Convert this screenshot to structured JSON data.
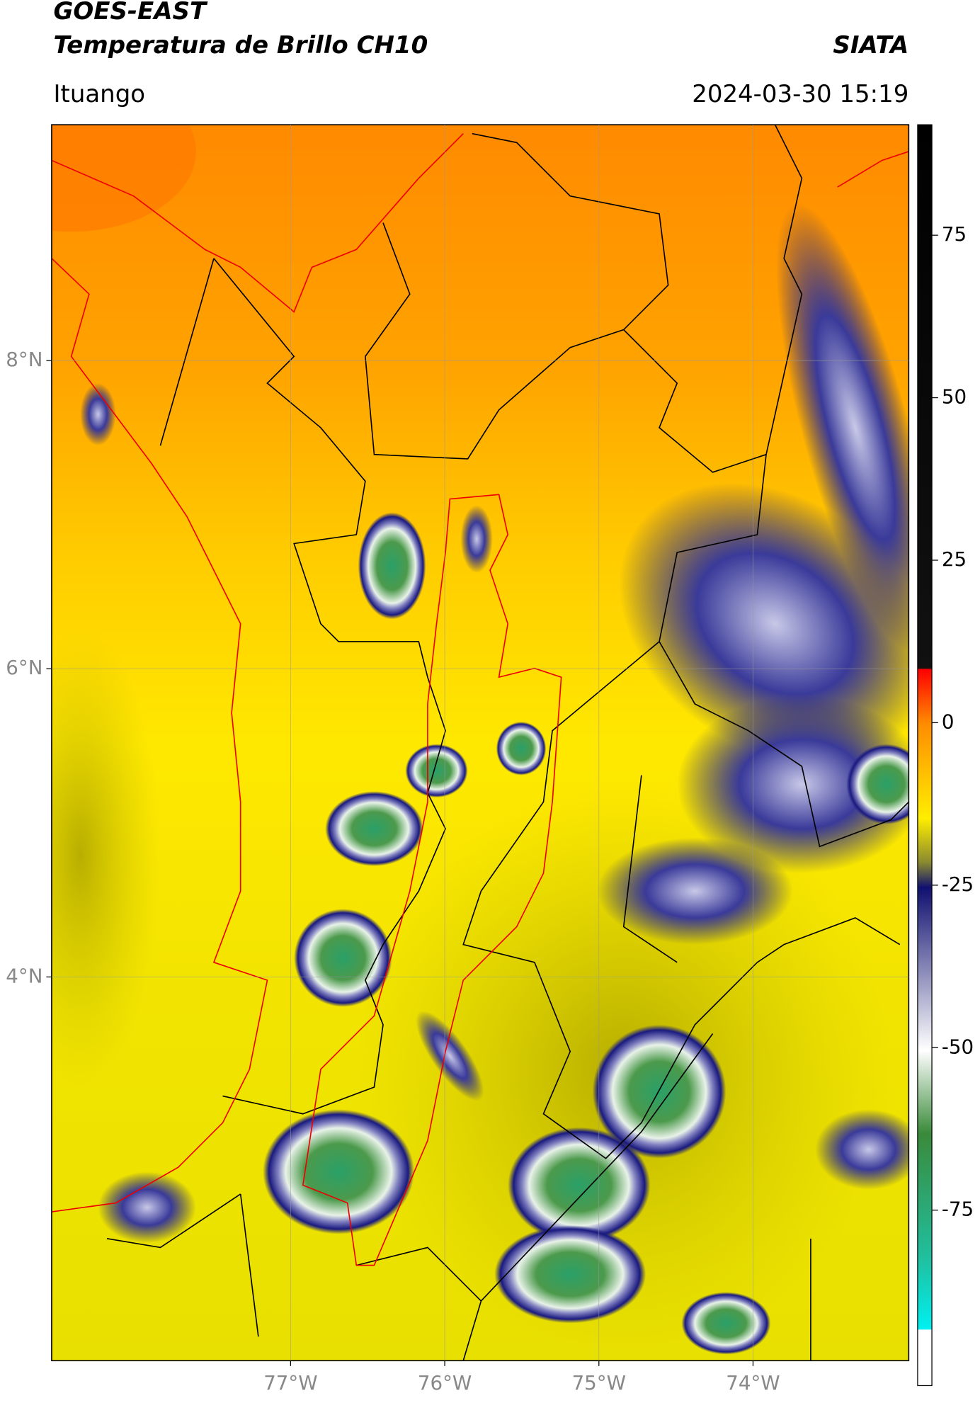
{
  "header": {
    "title": "GOES-EAST",
    "subtitle": "Temperatura de Brillo CH10",
    "source": "SIATA",
    "region": "Ituango",
    "timestamp": "2024-03-30 15:19"
  },
  "map": {
    "lon_range": [
      -78.55,
      -72.99
    ],
    "lat_range": [
      1.51,
      9.53
    ],
    "grid": true,
    "lon_ticks": [
      {
        "value": -77,
        "label": "77°W"
      },
      {
        "value": -76,
        "label": "76°W"
      },
      {
        "value": -75,
        "label": "75°W"
      },
      {
        "value": -74,
        "label": "74°W"
      }
    ],
    "lat_ticks": [
      {
        "value": 8,
        "label": "8°N"
      },
      {
        "value": 6,
        "label": "6°N"
      },
      {
        "value": 4,
        "label": "4°N"
      }
    ]
  },
  "colorbar": {
    "range": [
      -102,
      92
    ],
    "ticks": [
      75,
      50,
      25,
      0,
      -25,
      -50,
      -75
    ]
  }
}
